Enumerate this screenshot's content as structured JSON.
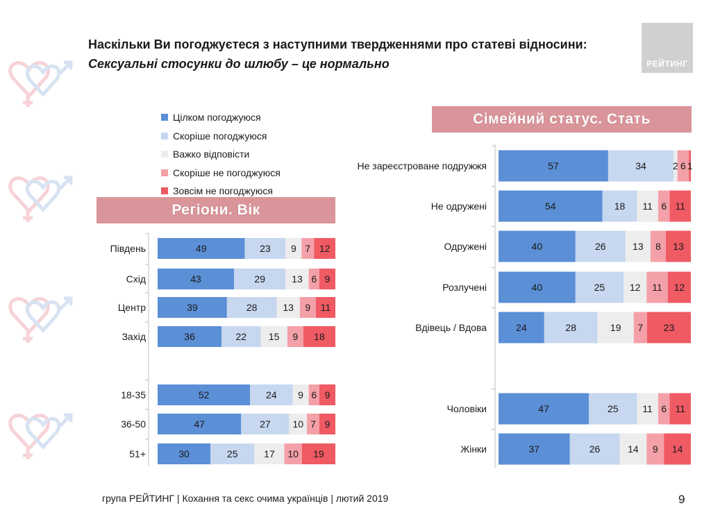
{
  "title": "Наскільки Ви погоджуєтеся з наступними твердженнями про статеві відносини:",
  "subtitle": "Сексуальні стосунки до шлюбу – це нормально",
  "logo_text": "РЕЙТИНГ",
  "legend": [
    {
      "label": "Цілком погоджуюся",
      "color": "#5b8fd6"
    },
    {
      "label": "Скоріше погоджуюся",
      "color": "#c6d7ef"
    },
    {
      "label": "Важко відповісти",
      "color": "#ededed"
    },
    {
      "label": "Скоріше не погоджуюся",
      "color": "#f4a0a8"
    },
    {
      "label": "Зовсім не погоджуюся",
      "color": "#ef5a63"
    }
  ],
  "left_header": "Регіони. Вік",
  "right_header": "Сімейний статус. Стать",
  "footer": "група РЕЙТИНГ | Кохання та секс очима українців | лютий 2019",
  "page_number": "9",
  "chart_data": [
    {
      "type": "bar",
      "orientation": "horizontal-stacked",
      "categories": [
        "Південь",
        "Схід",
        "Центр",
        "Захід",
        "18-35",
        "36-50",
        "51+"
      ],
      "series": [
        {
          "name": "Цілком погоджуюся",
          "values": [
            49,
            43,
            39,
            36,
            52,
            47,
            30
          ]
        },
        {
          "name": "Скоріше погоджуюся",
          "values": [
            23,
            29,
            28,
            22,
            24,
            27,
            25
          ]
        },
        {
          "name": "Важко відповісти",
          "values": [
            9,
            13,
            13,
            15,
            9,
            10,
            17
          ]
        },
        {
          "name": "Скоріше не погоджуюся",
          "values": [
            7,
            6,
            9,
            9,
            6,
            7,
            10
          ]
        },
        {
          "name": "Зовсім не погоджуюся",
          "values": [
            12,
            9,
            11,
            18,
            9,
            9,
            19
          ]
        }
      ]
    },
    {
      "type": "bar",
      "orientation": "horizontal-stacked",
      "categories": [
        "Не зареєстроване подружжя",
        "Не одружені",
        "Одружені",
        "Розлучені",
        "Вдівець / Вдова",
        "Чоловіки",
        "Жінки"
      ],
      "series": [
        {
          "name": "Цілком погоджуюся",
          "values": [
            57,
            54,
            40,
            40,
            24,
            47,
            37
          ]
        },
        {
          "name": "Скоріше погоджуюся",
          "values": [
            34,
            18,
            26,
            25,
            28,
            25,
            26
          ]
        },
        {
          "name": "Важко відповісти",
          "values": [
            2,
            11,
            13,
            12,
            19,
            11,
            14
          ]
        },
        {
          "name": "Скоріше не погоджуюся",
          "values": [
            6,
            6,
            8,
            11,
            7,
            6,
            9
          ]
        },
        {
          "name": "Зовсім не погоджуюся",
          "values": [
            1,
            11,
            13,
            12,
            23,
            11,
            14
          ]
        }
      ]
    }
  ]
}
